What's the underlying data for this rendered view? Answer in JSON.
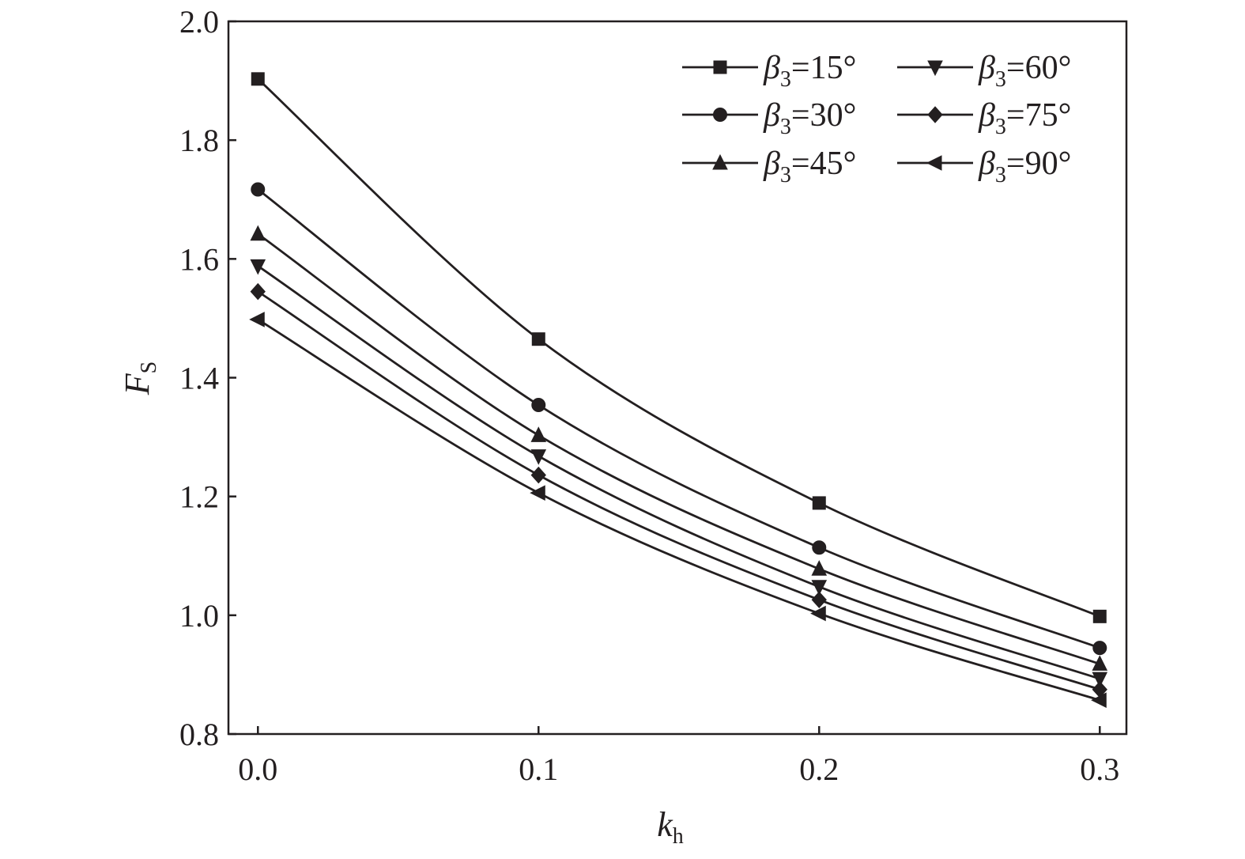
{
  "chart_data": {
    "type": "line",
    "xlabel": {
      "main": "k",
      "sub": "h"
    },
    "ylabel": {
      "main": "F",
      "sub": "S"
    },
    "xlim": [
      -0.0105,
      0.3095
    ],
    "ylim": [
      0.8,
      2.0
    ],
    "xticks": [
      0.0,
      0.1,
      0.2,
      0.3
    ],
    "xtick_labels": [
      "0.0",
      "0.1",
      "0.2",
      "0.3"
    ],
    "yticks": [
      0.8,
      1.0,
      1.2,
      1.4,
      1.6,
      1.8,
      2.0
    ],
    "ytick_labels": [
      "0.8",
      "1.0",
      "1.2",
      "1.4",
      "1.6",
      "1.8",
      "2.0"
    ],
    "grid": false,
    "legend_position": "top-right",
    "x": [
      0.0,
      0.1,
      0.2,
      0.3
    ],
    "series": [
      {
        "name": "β3=15°",
        "name_symbol": "β",
        "name_sub": "3",
        "name_value": "=15°",
        "marker": "square",
        "values": [
          1.903,
          1.465,
          1.189,
          0.998
        ]
      },
      {
        "name": "β3=30°",
        "name_symbol": "β",
        "name_sub": "3",
        "name_value": "=30°",
        "marker": "circle",
        "values": [
          1.717,
          1.354,
          1.114,
          0.945
        ]
      },
      {
        "name": "β3=45°",
        "name_symbol": "β",
        "name_sub": "3",
        "name_value": "=45°",
        "marker": "triangle-up",
        "values": [
          1.642,
          1.303,
          1.078,
          0.918
        ]
      },
      {
        "name": "β3=60°",
        "name_symbol": "β",
        "name_sub": "3",
        "name_value": "=60°",
        "marker": "triangle-down",
        "values": [
          1.588,
          1.268,
          1.048,
          0.893
        ]
      },
      {
        "name": "β3=75°",
        "name_symbol": "β",
        "name_sub": "3",
        "name_value": "=75°",
        "marker": "diamond",
        "values": [
          1.545,
          1.236,
          1.026,
          0.875
        ]
      },
      {
        "name": "β3=90°",
        "name_symbol": "β",
        "name_sub": "3",
        "name_value": "=90°",
        "marker": "triangle-left",
        "values": [
          1.498,
          1.206,
          1.003,
          0.857
        ]
      }
    ],
    "colors": {
      "line": "#231f20",
      "axis": "#231f20",
      "background": "#ffffff"
    }
  }
}
